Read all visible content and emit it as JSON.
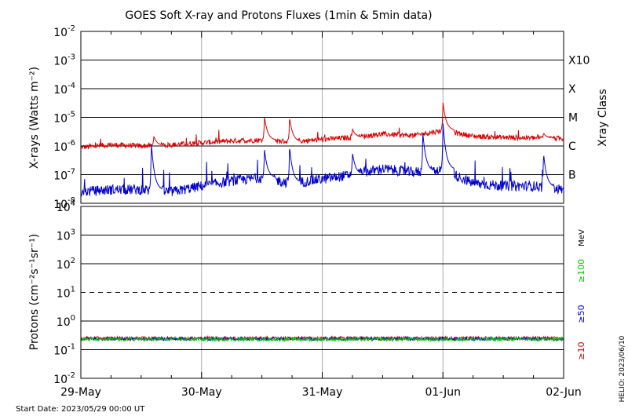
{
  "title": "GOES Soft X-ray and Protons Fluxes   (1min & 5min data)",
  "start_date": "Start Date: 2023/05/29 00:00 UT",
  "credit": "HELIO: 2023/06/10",
  "colors": {
    "long_xray": "#dd0000",
    "short_xray": "#0000cc",
    "p10": "#dd0000",
    "p50": "#0000cc",
    "p100": "#00cc00",
    "grid": "#000000",
    "day_line": "#aaaaaa"
  },
  "chart_data": [
    {
      "type": "line",
      "panel": "xray",
      "ylabel": "X-rays (Watts m⁻²)",
      "yscale": "log",
      "ylim": [
        1e-08,
        0.01
      ],
      "yticks": [
        {
          "base": "10",
          "exp": "-2"
        },
        {
          "base": "10",
          "exp": "-3"
        },
        {
          "base": "10",
          "exp": "-4"
        },
        {
          "base": "10",
          "exp": "-5"
        },
        {
          "base": "10",
          "exp": "-6"
        },
        {
          "base": "10",
          "exp": "-7"
        },
        {
          "base": "10",
          "exp": "-8"
        }
      ],
      "right_axis_label": "Xray Class",
      "flare_classes": [
        {
          "label": "X10",
          "value": 0.001
        },
        {
          "label": "X",
          "value": 0.0001
        },
        {
          "label": "M",
          "value": 1e-05
        },
        {
          "label": "C",
          "value": 1e-06
        },
        {
          "label": "B",
          "value": 1e-07
        }
      ],
      "x": [
        "2023-05-29 00:00",
        "2023-05-29 06:00",
        "2023-05-29 12:00",
        "2023-05-29 18:00",
        "2023-05-30 00:00",
        "2023-05-30 06:00",
        "2023-05-30 12:00",
        "2023-05-30 18:00",
        "2023-05-31 00:00",
        "2023-05-31 06:00",
        "2023-05-31 12:00",
        "2023-05-31 18:00",
        "2023-06-01 00:00",
        "2023-06-01 06:00",
        "2023-06-01 12:00",
        "2023-06-01 18:00",
        "2023-06-02 00:00"
      ],
      "series": [
        {
          "key": "long",
          "color": "#dd0000",
          "values": [
            9e-07,
            1.1e-06,
            1e-06,
            1.1e-06,
            1.3e-06,
            1.5e-06,
            1.6e-06,
            1.4e-06,
            1.7e-06,
            2e-06,
            2.6e-06,
            2.3e-06,
            3.5e-06,
            2.2e-06,
            2e-06,
            1.9e-06,
            1.8e-06
          ],
          "peaks": [
            {
              "t": "2023-05-29 14:30",
              "v": 2.2e-06
            },
            {
              "t": "2023-05-30 12:30",
              "v": 1.1e-05
            },
            {
              "t": "2023-05-30 17:30",
              "v": 1e-05
            },
            {
              "t": "2023-05-31 06:00",
              "v": 4e-06
            },
            {
              "t": "2023-06-01 00:00",
              "v": 3.5e-05
            },
            {
              "t": "2023-06-01 20:00",
              "v": 2.8e-06
            }
          ]
        },
        {
          "key": "short",
          "color": "#0000cc",
          "values": [
            2.5e-08,
            3e-08,
            3e-08,
            2.5e-08,
            4e-08,
            6e-08,
            8e-08,
            5e-08,
            7e-08,
            1e-07,
            1.6e-07,
            1.2e-07,
            1.5e-07,
            5e-08,
            4e-08,
            4e-08,
            3e-08
          ],
          "peaks": [
            {
              "t": "2023-05-29 14:00",
              "v": 1.5e-06
            },
            {
              "t": "2023-05-30 12:30",
              "v": 8e-07
            },
            {
              "t": "2023-05-30 17:30",
              "v": 1e-06
            },
            {
              "t": "2023-05-31 06:00",
              "v": 6e-07
            },
            {
              "t": "2023-05-31 20:00",
              "v": 3e-06
            },
            {
              "t": "2023-06-01 00:00",
              "v": 7e-06
            },
            {
              "t": "2023-06-01 20:00",
              "v": 6e-07
            }
          ]
        }
      ]
    },
    {
      "type": "line",
      "panel": "protons",
      "ylabel": "Protons (cm⁻²s⁻¹sr⁻¹)",
      "yscale": "log",
      "ylim": [
        0.01,
        10000
      ],
      "yticks": [
        {
          "base": "10",
          "exp": "4"
        },
        {
          "base": "10",
          "exp": "3"
        },
        {
          "base": "10",
          "exp": "2"
        },
        {
          "base": "10",
          "exp": "1"
        },
        {
          "base": "10",
          "exp": "0"
        },
        {
          "base": "10",
          "exp": "-1"
        },
        {
          "base": "10",
          "exp": "-2"
        }
      ],
      "threshold": 10,
      "right_unit": "MeV",
      "energy_labels": [
        {
          "label": "≥100",
          "color": "#00cc00"
        },
        {
          "label": "≥50",
          "color": "#0000cc"
        },
        {
          "label": "≥10",
          "color": "#dd0000"
        }
      ],
      "series": [
        {
          "name": "≥10",
          "color": "#dd0000",
          "value": 0.25
        },
        {
          "name": "≥50",
          "color": "#0000cc",
          "value": 0.24
        },
        {
          "name": "≥100",
          "color": "#00cc00",
          "value": 0.23
        }
      ]
    }
  ],
  "x_axis": {
    "ticks": [
      "29-May",
      "30-May",
      "31-May",
      "01-Jun",
      "02-Jun"
    ],
    "range_days": [
      0,
      4
    ]
  }
}
